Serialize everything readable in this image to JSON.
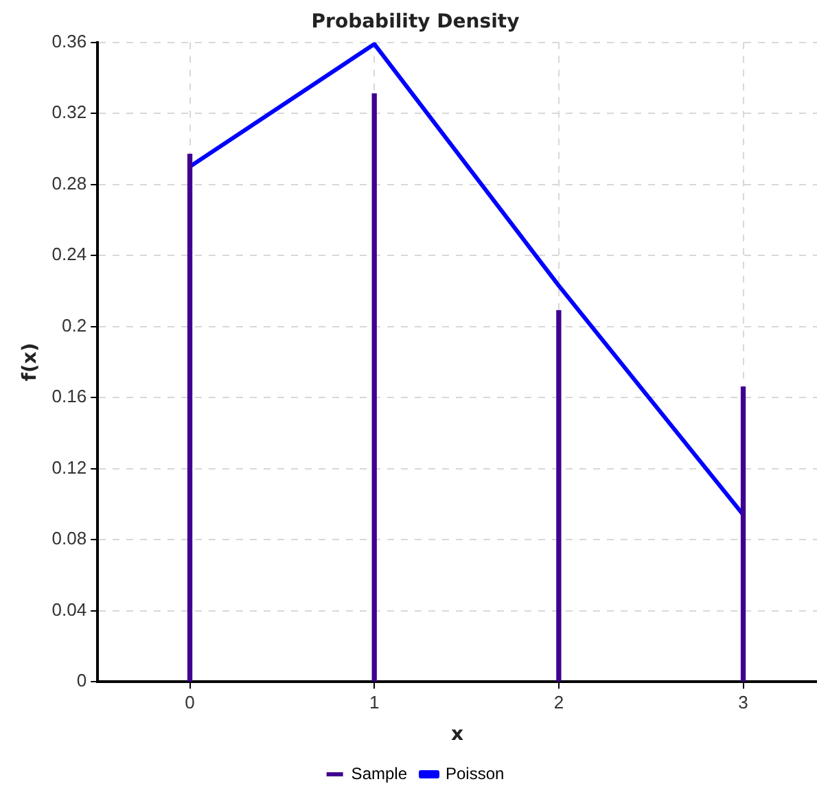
{
  "chart_data": {
    "type": "bar",
    "title": "Probability Density",
    "xlabel": "x",
    "ylabel": "f(x)",
    "x": [
      0,
      1,
      2,
      3
    ],
    "series": [
      {
        "name": "Sample",
        "color": "#400090",
        "values": [
          0.297,
          0.331,
          0.209,
          0.166
        ]
      },
      {
        "name": "Poisson",
        "type": "line",
        "color": "#0000ff",
        "values": [
          0.29,
          0.359,
          0.223,
          0.094
        ]
      }
    ],
    "xlim": [
      -0.5,
      3.4
    ],
    "xticks": [
      0,
      1,
      2,
      3
    ],
    "ylim": [
      0,
      0.36
    ],
    "yticks": [
      0,
      0.04,
      0.08,
      0.12,
      0.16,
      0.2,
      0.24,
      0.28,
      0.32,
      0.36
    ],
    "grid": true,
    "legend": "bottom",
    "marker": "none"
  }
}
